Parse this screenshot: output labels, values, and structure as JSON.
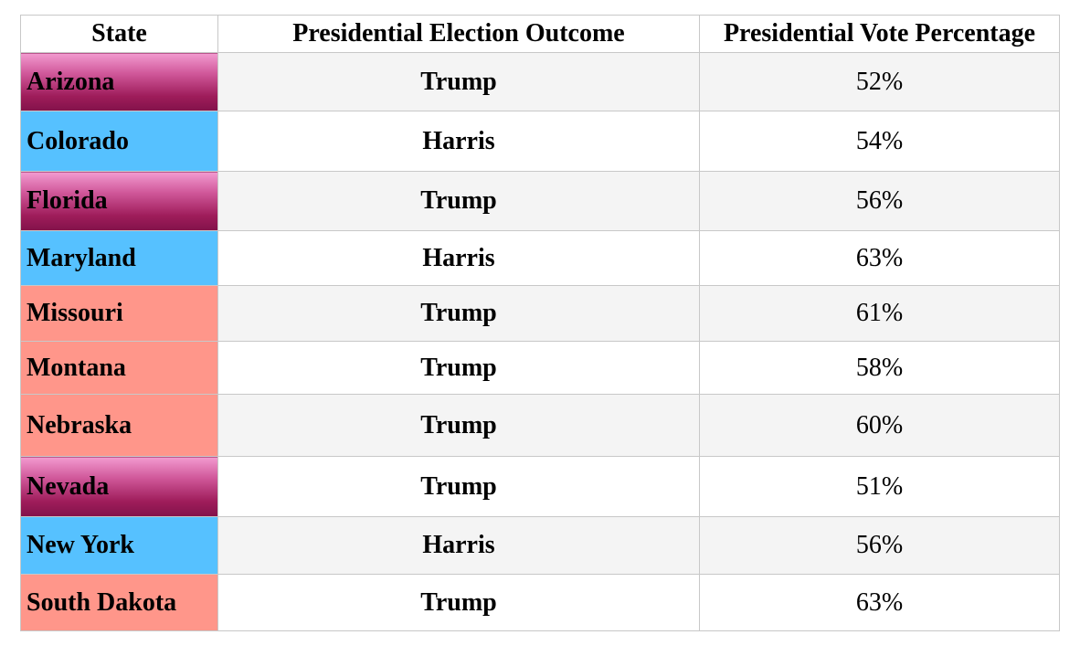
{
  "table": {
    "headers": [
      "State",
      "Presidential Election Outcome",
      "Presidential Vote Percentage"
    ],
    "rows": [
      {
        "state": "Arizona",
        "outcome": "Trump",
        "pct": "52%",
        "category": "swing"
      },
      {
        "state": "Colorado",
        "outcome": "Harris",
        "pct": "54%",
        "category": "harris"
      },
      {
        "state": "Florida",
        "outcome": "Trump",
        "pct": "56%",
        "category": "swing"
      },
      {
        "state": "Maryland",
        "outcome": "Harris",
        "pct": "63%",
        "category": "harris"
      },
      {
        "state": "Missouri",
        "outcome": "Trump",
        "pct": "61%",
        "category": "trump"
      },
      {
        "state": "Montana",
        "outcome": "Trump",
        "pct": "58%",
        "category": "trump"
      },
      {
        "state": "Nebraska",
        "outcome": "Trump",
        "pct": "60%",
        "category": "trump"
      },
      {
        "state": "Nevada",
        "outcome": "Trump",
        "pct": "51%",
        "category": "swing"
      },
      {
        "state": "New York",
        "outcome": "Harris",
        "pct": "56%",
        "category": "harris"
      },
      {
        "state": "South Dakota",
        "outcome": "Trump",
        "pct": "63%",
        "category": "trump"
      }
    ]
  },
  "colors": {
    "swing_gradient_top": "#f29bd0",
    "swing_gradient_bottom": "#82124a",
    "harris": "#56c1ff",
    "trump": "#ff968a",
    "stripe": "#f4f4f4",
    "border": "#c8c8c8"
  }
}
